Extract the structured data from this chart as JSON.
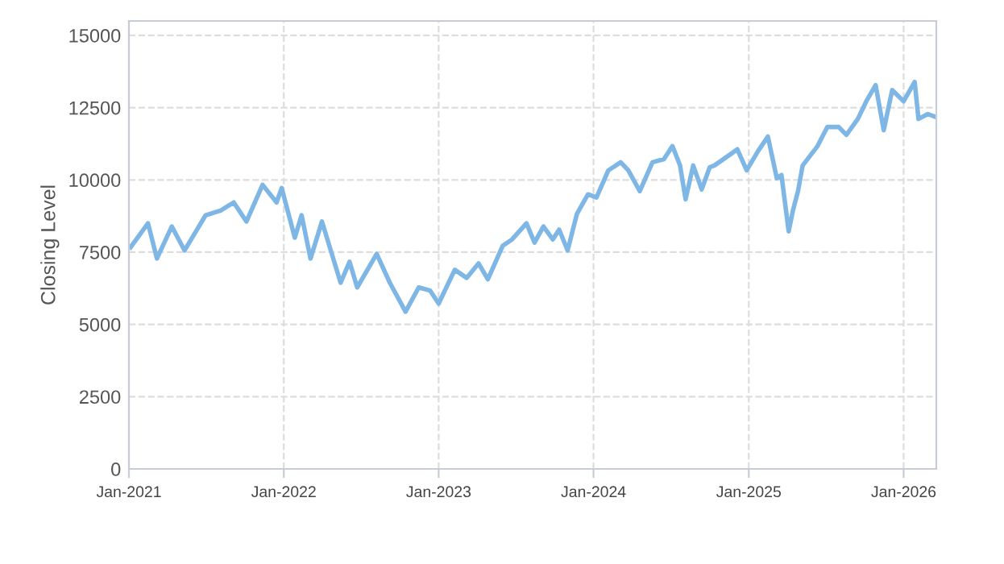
{
  "chart_data": {
    "type": "line",
    "ylabel": "Closing Level",
    "x": [
      "2021-01-05",
      "2021-02-15",
      "2021-03-08",
      "2021-04-12",
      "2021-05-12",
      "2021-07-01",
      "2021-08-05",
      "2021-09-05",
      "2021-10-05",
      "2021-11-12",
      "2021-12-15",
      "2021-12-27",
      "2022-01-27",
      "2022-02-12",
      "2022-03-05",
      "2022-04-01",
      "2022-05-15",
      "2022-06-05",
      "2022-06-23",
      "2022-08-08",
      "2022-09-08",
      "2022-10-15",
      "2022-11-15",
      "2022-12-12",
      "2023-01-01",
      "2023-02-08",
      "2023-03-08",
      "2023-04-05",
      "2023-04-27",
      "2023-06-01",
      "2023-06-23",
      "2023-07-27",
      "2023-08-15",
      "2023-09-05",
      "2023-09-27",
      "2023-10-12",
      "2023-11-01",
      "2023-11-23",
      "2023-12-19",
      "2024-01-08",
      "2024-02-05",
      "2024-03-05",
      "2024-03-23",
      "2024-04-19",
      "2024-05-19",
      "2024-06-15",
      "2024-07-05",
      "2024-07-23",
      "2024-08-05",
      "2024-08-23",
      "2024-09-12",
      "2024-10-01",
      "2024-10-12",
      "2024-11-19",
      "2024-12-05",
      "2024-12-27",
      "2025-01-23",
      "2025-02-15",
      "2025-03-08",
      "2025-03-19",
      "2025-04-05",
      "2025-04-15",
      "2025-04-27",
      "2025-05-08",
      "2025-06-12",
      "2025-07-05",
      "2025-08-01",
      "2025-08-19",
      "2025-09-15",
      "2025-10-05",
      "2025-10-27",
      "2025-11-15",
      "2025-12-05",
      "2026-01-01",
      "2026-01-27",
      "2026-02-05",
      "2026-02-27",
      "2026-03-19"
    ],
    "series": [
      {
        "color": "#7eb6e6",
        "values": [
          7670,
          8500,
          7280,
          8390,
          7560,
          8780,
          8940,
          9220,
          8560,
          9830,
          9220,
          9720,
          8000,
          8780,
          7280,
          8560,
          6440,
          7170,
          6280,
          7440,
          6440,
          5440,
          6280,
          6170,
          5720,
          6890,
          6610,
          7110,
          6560,
          7720,
          7940,
          8500,
          7830,
          8390,
          7940,
          8280,
          7560,
          8830,
          9500,
          9390,
          10330,
          10610,
          10330,
          9610,
          10610,
          10720,
          11170,
          10500,
          9330,
          10500,
          9670,
          10440,
          10500,
          10890,
          11060,
          10330,
          11000,
          11500,
          10060,
          10170,
          8220,
          8940,
          9610,
          10500,
          11170,
          11830,
          11830,
          11560,
          12110,
          12720,
          13280,
          11720,
          13110,
          12720,
          13390,
          12110,
          12280,
          12170
        ]
      }
    ],
    "xlim": [
      "2021-01-01",
      "2026-03-19"
    ],
    "xticks": [
      {
        "value": "2021-01-01",
        "label": "Jan-2021"
      },
      {
        "value": "2022-01-01",
        "label": "Jan-2022"
      },
      {
        "value": "2023-01-01",
        "label": "Jan-2023"
      },
      {
        "value": "2024-01-01",
        "label": "Jan-2024"
      },
      {
        "value": "2025-01-01",
        "label": "Jan-2025"
      },
      {
        "value": "2026-01-01",
        "label": "Jan-2026"
      }
    ],
    "ylim": [
      0,
      15500
    ],
    "yticks": [
      0,
      2500,
      5000,
      7500,
      10000,
      12500,
      15000
    ],
    "grid": true,
    "marker": "none",
    "line_style": "solid"
  }
}
